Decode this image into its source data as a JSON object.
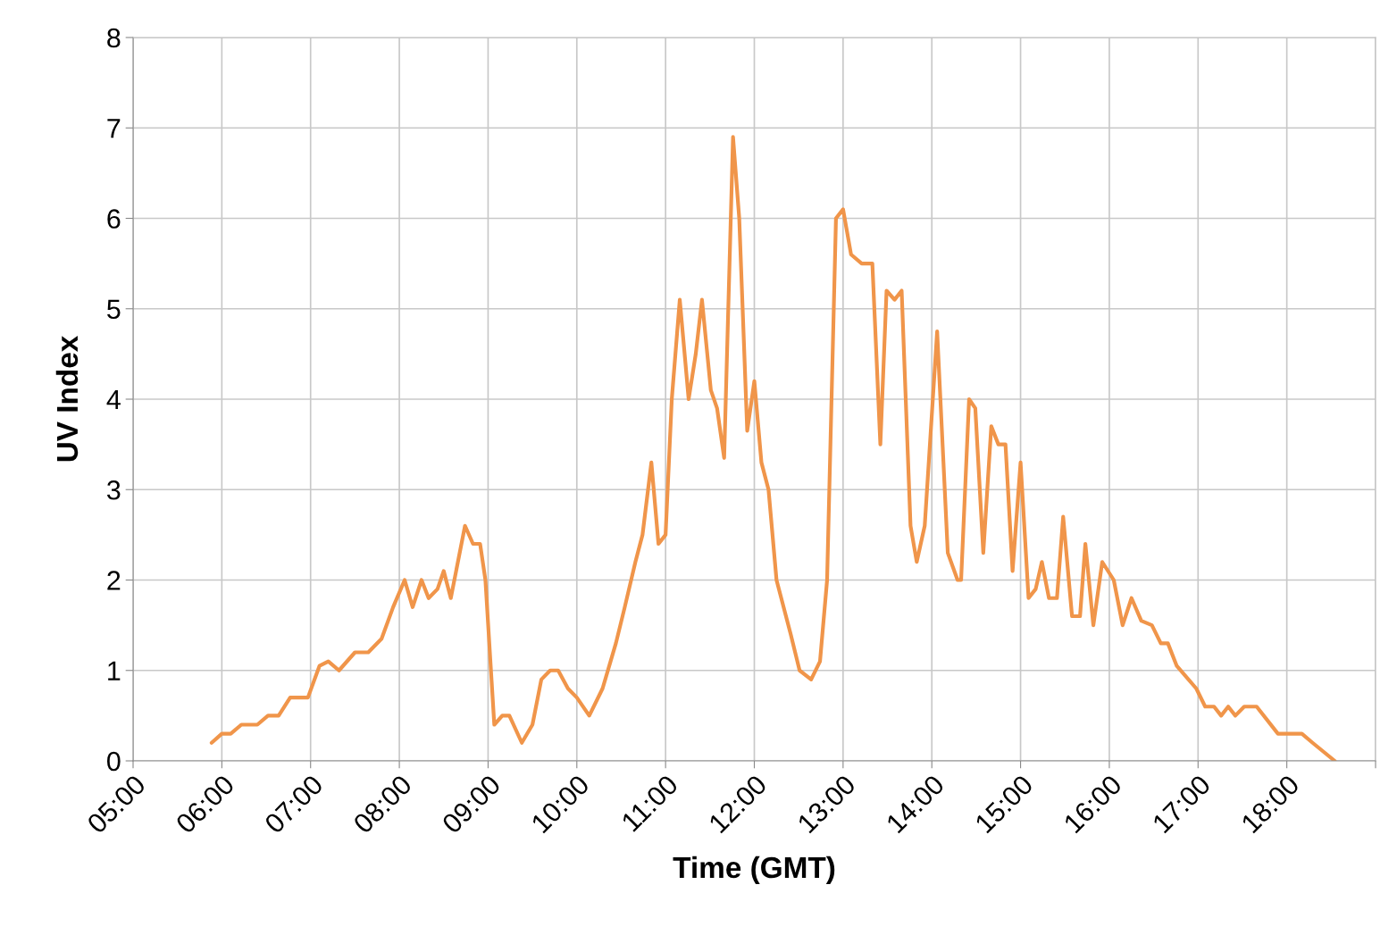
{
  "chart_data": {
    "type": "line",
    "xlabel": "Time (GMT)",
    "ylabel": "UV Index",
    "x": [
      5.885,
      6.0,
      6.1,
      6.22,
      6.4,
      6.52,
      6.64,
      6.77,
      6.97,
      7.1,
      7.2,
      7.32,
      7.5,
      7.65,
      7.8,
      7.93,
      8.06,
      8.15,
      8.25,
      8.33,
      8.43,
      8.5,
      8.58,
      8.74,
      8.83,
      8.91,
      8.97,
      9.07,
      9.16,
      9.24,
      9.38,
      9.5,
      9.6,
      9.7,
      9.79,
      9.9,
      10.0,
      10.14,
      10.29,
      10.44,
      10.54,
      10.66,
      10.74,
      10.84,
      10.92,
      11.0,
      11.07,
      11.16,
      11.26,
      11.34,
      11.41,
      11.51,
      11.58,
      11.66,
      11.76,
      11.83,
      11.92,
      12.0,
      12.08,
      12.16,
      12.25,
      12.41,
      12.51,
      12.64,
      12.74,
      12.82,
      12.92,
      13.0,
      13.09,
      13.21,
      13.33,
      13.42,
      13.49,
      13.58,
      13.66,
      13.76,
      13.83,
      13.92,
      14.06,
      14.18,
      14.29,
      14.33,
      14.42,
      14.49,
      14.58,
      14.67,
      14.75,
      14.83,
      14.91,
      15.0,
      15.09,
      15.17,
      15.24,
      15.32,
      15.41,
      15.48,
      15.58,
      15.67,
      15.73,
      15.82,
      15.92,
      16.05,
      16.15,
      16.25,
      16.36,
      16.48,
      16.58,
      16.66,
      16.76,
      16.98,
      17.08,
      17.18,
      17.26,
      17.34,
      17.42,
      17.52,
      17.66,
      17.9,
      18.17,
      18.29,
      18.54
    ],
    "series": [
      {
        "color": "#f0954a",
        "values": [
          0.2,
          0.3,
          0.3,
          0.4,
          0.4,
          0.5,
          0.5,
          0.7,
          0.7,
          1.05,
          1.1,
          1.0,
          1.2,
          1.2,
          1.35,
          1.7,
          2.0,
          1.7,
          2.0,
          1.8,
          1.9,
          2.1,
          1.8,
          2.6,
          2.4,
          2.4,
          2.0,
          0.4,
          0.5,
          0.5,
          0.2,
          0.4,
          0.9,
          1.0,
          1.0,
          0.8,
          0.7,
          0.5,
          0.8,
          1.3,
          1.7,
          2.2,
          2.5,
          3.3,
          2.4,
          2.5,
          4.0,
          5.1,
          4.0,
          4.5,
          5.1,
          4.1,
          3.9,
          3.35,
          6.9,
          6.0,
          3.65,
          4.2,
          3.3,
          3.0,
          2.0,
          1.4,
          1.0,
          0.9,
          1.1,
          2.0,
          6.0,
          6.1,
          5.6,
          5.5,
          5.5,
          3.5,
          5.2,
          5.1,
          5.2,
          2.6,
          2.2,
          2.6,
          4.75,
          2.3,
          2.0,
          2.0,
          4.0,
          3.9,
          2.3,
          3.7,
          3.5,
          3.5,
          2.1,
          3.3,
          1.8,
          1.9,
          2.2,
          1.8,
          1.8,
          2.7,
          1.6,
          1.6,
          2.4,
          1.5,
          2.2,
          2.0,
          1.5,
          1.8,
          1.55,
          1.5,
          1.3,
          1.3,
          1.05,
          0.8,
          0.6,
          0.6,
          0.5,
          0.6,
          0.5,
          0.6,
          0.6,
          0.3,
          0.3,
          0.2,
          0.0
        ]
      }
    ],
    "xlim": [
      5,
      19
    ],
    "xticks": [
      {
        "value": 5,
        "label": "05:00"
      },
      {
        "value": 6,
        "label": "06:00"
      },
      {
        "value": 7,
        "label": "07:00"
      },
      {
        "value": 8,
        "label": "08:00"
      },
      {
        "value": 9,
        "label": "09:00"
      },
      {
        "value": 10,
        "label": "10:00"
      },
      {
        "value": 11,
        "label": "11:00"
      },
      {
        "value": 12,
        "label": "12:00"
      },
      {
        "value": 13,
        "label": "13:00"
      },
      {
        "value": 14,
        "label": "14:00"
      },
      {
        "value": 15,
        "label": "15:00"
      },
      {
        "value": 16,
        "label": "16:00"
      },
      {
        "value": 17,
        "label": "17:00"
      },
      {
        "value": 18,
        "label": "18:00"
      },
      {
        "value": 19,
        "label": null
      }
    ],
    "ylim": [
      0,
      8
    ],
    "yticks": [
      0,
      1,
      2,
      3,
      4,
      5,
      6,
      7,
      8
    ],
    "grid": true,
    "marker": "none",
    "line_style": "solid"
  }
}
